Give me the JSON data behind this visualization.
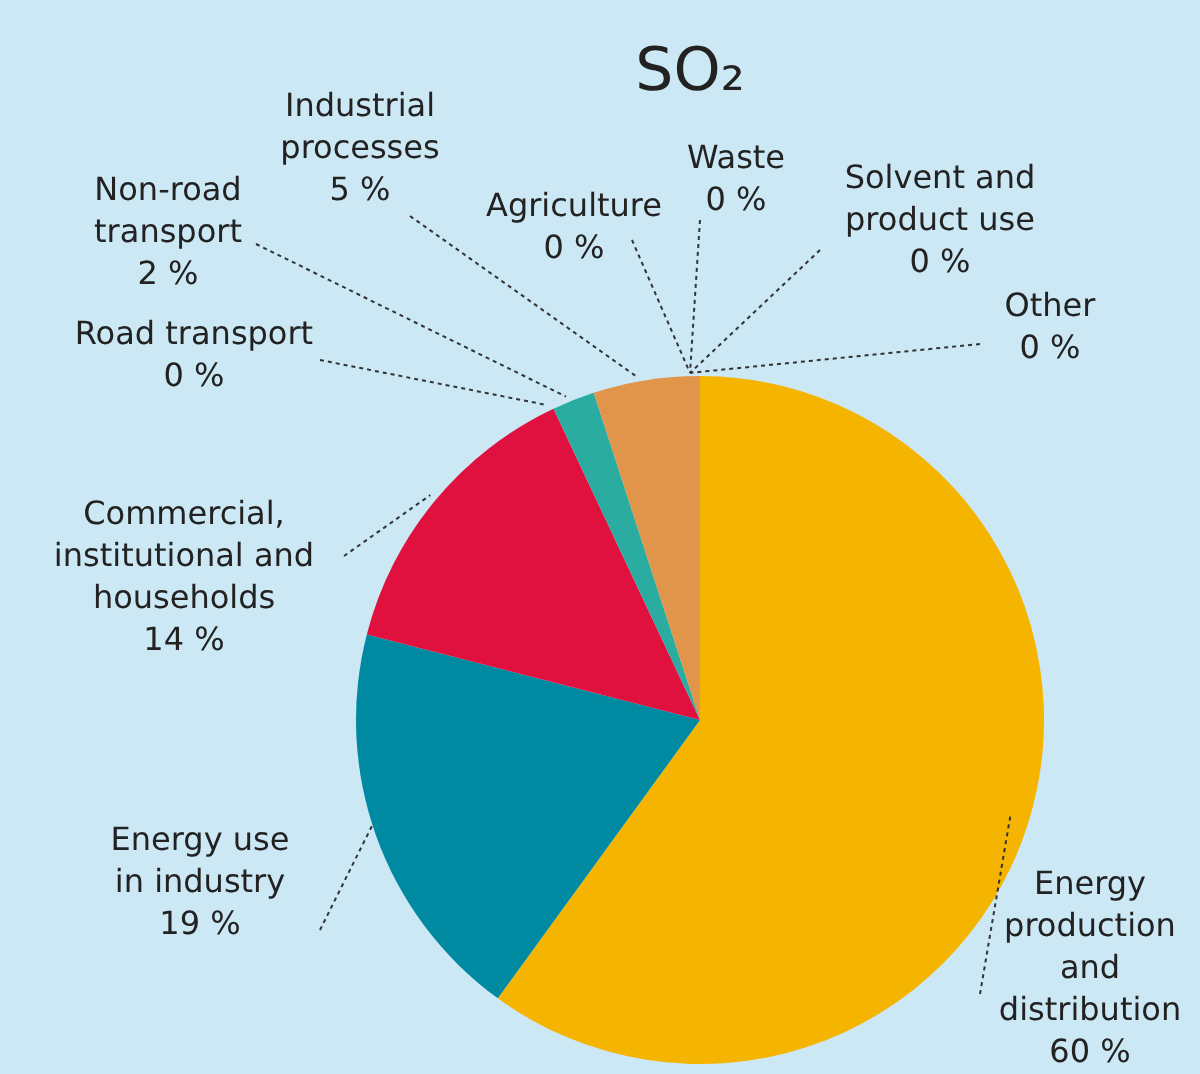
{
  "chart_data": {
    "type": "pie",
    "title": "SO₂",
    "categories": [
      "Energy production and distribution",
      "Energy use in industry",
      "Commercial, institutional and households",
      "Road transport",
      "Non-road transport",
      "Industrial processes",
      "Agriculture",
      "Waste",
      "Solvent and product use",
      "Other"
    ],
    "values": [
      60,
      19,
      14,
      0,
      2,
      5,
      0,
      0,
      0,
      0
    ],
    "value_labels": [
      "60 %",
      "19 %",
      "14 %",
      "0 %",
      "2 %",
      "5 %",
      "0 %",
      "0 %",
      "0 %",
      "0 %"
    ],
    "colors": [
      "#f5b400",
      "#008aa1",
      "#e0103f",
      "#1f3f7a",
      "#2aaca0",
      "#e0954a",
      "#7a9a3a",
      "#2a7fc0",
      "#8a5aa0",
      "#888888"
    ]
  }
}
